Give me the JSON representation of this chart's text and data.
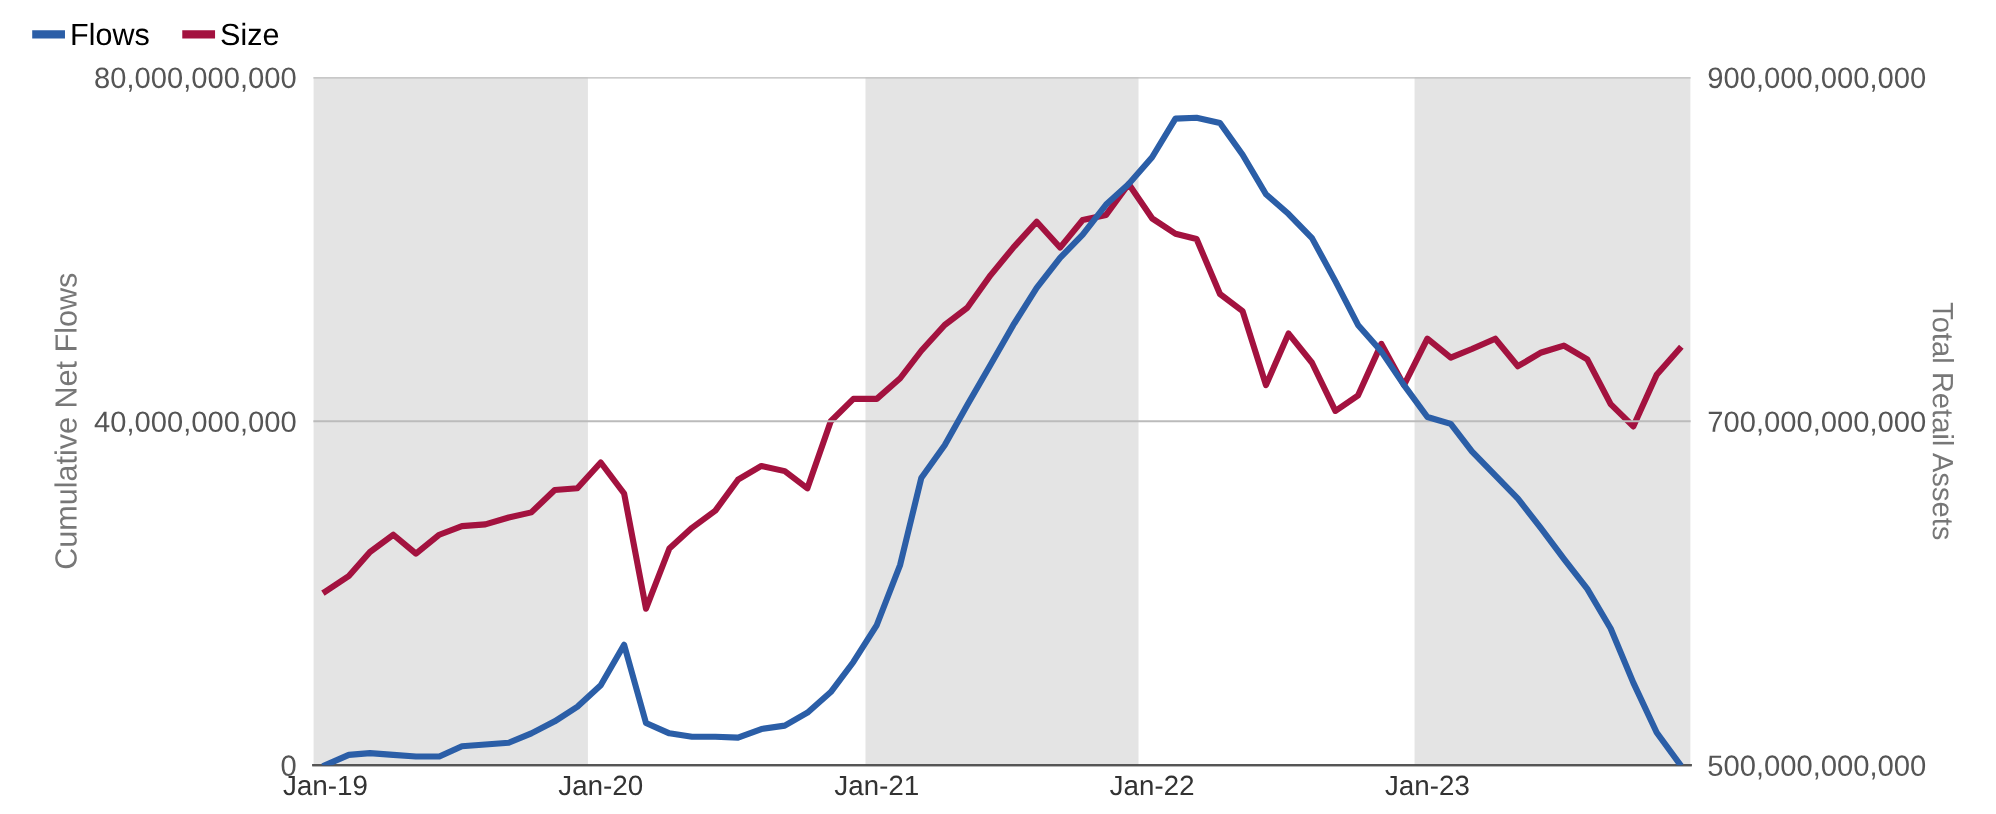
{
  "chart_data": {
    "type": "line",
    "ylabel": "Cumulative Net Flows",
    "y2label": "Total Retail Assets",
    "x": [
      "2019-01",
      "2019-02",
      "2019-03",
      "2019-04",
      "2019-05",
      "2019-06",
      "2019-07",
      "2019-08",
      "2019-09",
      "2019-10",
      "2019-11",
      "2019-12",
      "2020-01",
      "2020-02",
      "2020-03",
      "2020-04",
      "2020-05",
      "2020-06",
      "2020-07",
      "2020-08",
      "2020-09",
      "2020-10",
      "2020-11",
      "2020-12",
      "2021-01",
      "2021-02",
      "2021-03",
      "2021-04",
      "2021-05",
      "2021-06",
      "2021-07",
      "2021-08",
      "2021-09",
      "2021-10",
      "2021-11",
      "2021-12",
      "2022-01",
      "2022-02",
      "2022-03",
      "2022-04",
      "2022-05",
      "2022-06",
      "2022-07",
      "2022-08",
      "2022-09",
      "2022-10",
      "2022-11",
      "2022-12",
      "2023-01",
      "2023-02",
      "2023-03",
      "2023-04",
      "2023-05",
      "2023-06",
      "2023-07",
      "2023-08",
      "2023-09",
      "2023-10",
      "2023-11",
      "2023-12"
    ],
    "series": [
      {
        "name": "Flows",
        "color": "#2b5ea7",
        "values": [
          0,
          1200000000,
          1400000000,
          1200000000,
          1000000000,
          1000000000,
          2200000000,
          2400000000,
          2600000000,
          3700000000,
          5100000000,
          6800000000,
          9300000000,
          14000000000,
          4900000000,
          3700000000,
          3300000000,
          3300000000,
          3200000000,
          4200000000,
          4600000000,
          6100000000,
          8500000000,
          12000000000,
          16300000000,
          23300000000,
          33400000000,
          37200000000,
          41900000000,
          46600000000,
          51200000000,
          55500000000,
          59000000000,
          61700000000,
          65200000000,
          67600000000,
          70700000000,
          75200000000,
          75300000000,
          74700000000,
          71000000000,
          66400000000,
          64100000000,
          61300000000,
          56300000000,
          51200000000,
          48100000000,
          44200000000,
          40500000000,
          39700000000,
          36500000000,
          33700000000,
          31000000000,
          27500000000,
          24000000000,
          20500000000,
          15900000000,
          9600000000,
          3800000000,
          200000000
        ]
      },
      {
        "name": "Size",
        "color": "#a3123f",
        "axis": "y2",
        "values": [
          601000000000,
          610000000000,
          624000000000,
          634000000000,
          623000000000,
          634000000000,
          639000000000,
          640000000000,
          644000000000,
          647000000000,
          660000000000,
          661000000000,
          676000000000,
          658000000000,
          591000000000,
          626000000000,
          638000000000,
          648000000000,
          666000000000,
          674000000000,
          671000000000,
          661000000000,
          700000000000,
          713000000000,
          713000000000,
          725000000000,
          741000000000,
          756000000000,
          766000000000,
          785000000000,
          801000000000,
          816000000000,
          801000000000,
          817000000000,
          820000000000,
          838000000000,
          818000000000,
          809000000000,
          806000000000,
          774000000000,
          764000000000,
          721000000000,
          751000000000,
          734000000000,
          706000000000,
          715000000000,
          745000000000,
          721000000000,
          748000000000,
          737000000000,
          742000000000,
          748000000000,
          732000000000,
          740000000000,
          744000000000,
          736000000000,
          710000000000,
          697000000000,
          727000000000,
          742000000000
        ]
      }
    ],
    "xlim": [
      "2018-12-16",
      "2023-12-16"
    ],
    "xticks": [
      {
        "value": "2019-01",
        "label": "Jan-19"
      },
      {
        "value": "2020-01",
        "label": "Jan-20"
      },
      {
        "value": "2021-01",
        "label": "Jan-21"
      },
      {
        "value": "2022-01",
        "label": "Jan-22"
      },
      {
        "value": "2023-01",
        "label": "Jan-23"
      }
    ],
    "ylim": [
      0,
      80000000000
    ],
    "yticks": [
      {
        "value": 0,
        "label": "0"
      },
      {
        "value": 40000000000,
        "label": "40,000,000,000"
      },
      {
        "value": 80000000000,
        "label": "80,000,000,000"
      }
    ],
    "y2lim": [
      500000000000,
      900000000000
    ],
    "y2ticks": [
      {
        "value": 500000000000,
        "label": "500,000,000,000"
      },
      {
        "value": 700000000000,
        "label": "700,000,000,000"
      },
      {
        "value": 900000000000,
        "label": "900,000,000,000"
      }
    ],
    "bands": [
      {
        "axis": "x",
        "from": "2018-12-16",
        "to": "2019-12-15",
        "color": "#e4e4e4"
      },
      {
        "axis": "x",
        "from": "2020-12-17",
        "to": "2021-12-14",
        "color": "#e4e4e4"
      },
      {
        "axis": "x",
        "from": "2022-12-15",
        "to": "2023-12-16",
        "color": "#e4e4e4"
      }
    ],
    "grid": "y",
    "legend": "top left",
    "marker": "none",
    "line_style": "solid"
  }
}
